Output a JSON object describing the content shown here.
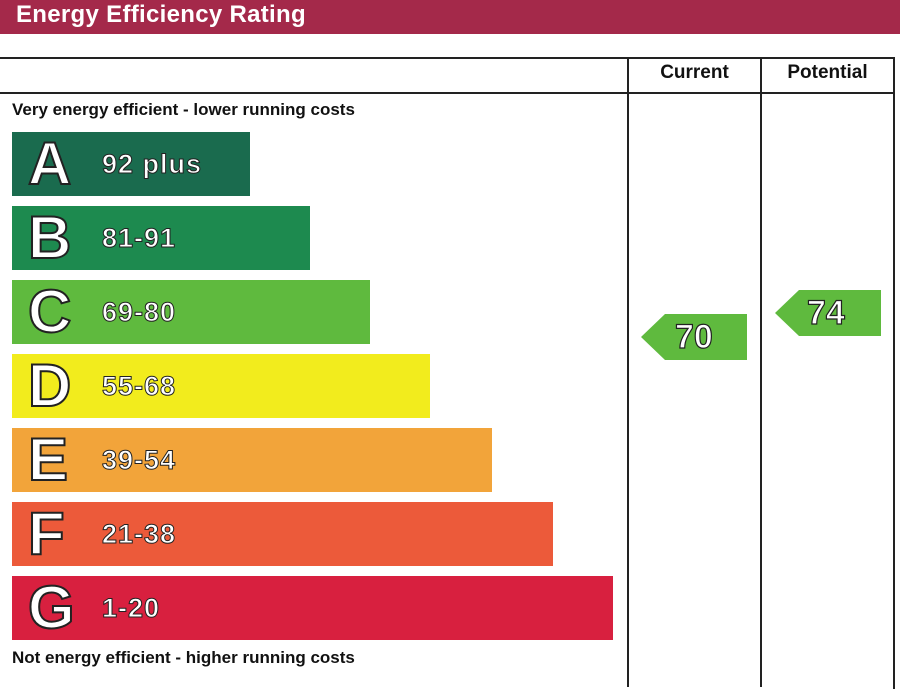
{
  "header": {
    "title": "Energy Efficiency Rating"
  },
  "columns": {
    "current": "Current",
    "potential": "Potential"
  },
  "captions": {
    "top": "Very energy efficient - lower running costs",
    "bottom": "Not energy efficient - higher running costs"
  },
  "chart_data": {
    "type": "bar",
    "categories": [
      "A",
      "B",
      "C",
      "D",
      "E",
      "F",
      "G"
    ],
    "bands": [
      {
        "letter": "A",
        "range": "92 plus",
        "color": "#1a6b4e"
      },
      {
        "letter": "B",
        "range": "81-91",
        "color": "#1d8a4f"
      },
      {
        "letter": "C",
        "range": "69-80",
        "color": "#5fba3e"
      },
      {
        "letter": "D",
        "range": "55-68",
        "color": "#f2ec1d"
      },
      {
        "letter": "E",
        "range": "39-54",
        "color": "#f2a43a"
      },
      {
        "letter": "F",
        "range": "21-38",
        "color": "#ec5a3a"
      },
      {
        "letter": "G",
        "range": "1-20",
        "color": "#d8203f"
      }
    ],
    "current": {
      "value": "70",
      "band": "C",
      "color": "#5fba3e"
    },
    "potential": {
      "value": "74",
      "band": "C",
      "color": "#5fba3e"
    }
  }
}
